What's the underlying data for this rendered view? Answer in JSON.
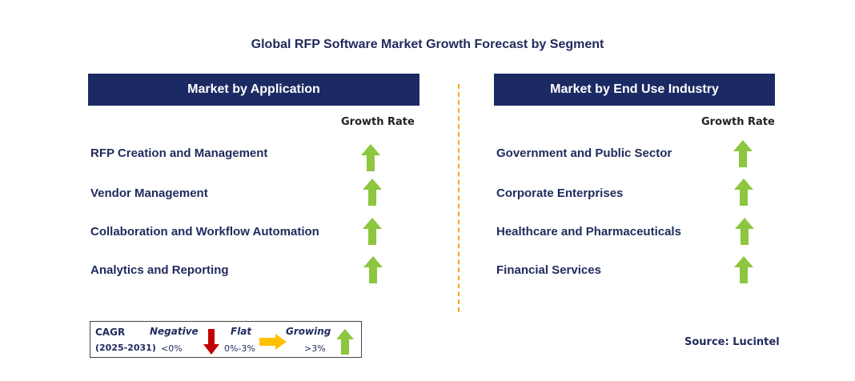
{
  "title": "Global RFP Software Market Growth Forecast by Segment",
  "colors": {
    "header_bg": "#1b2a63",
    "growing_arrow": "#8dc63f",
    "negative_arrow": "#c00000",
    "flat_arrow": "#ffc000",
    "divider": "#f5a623"
  },
  "left_panel": {
    "header": "Market by Application",
    "growth_label": "Growth Rate",
    "rows": [
      {
        "label": "RFP Creation and Management",
        "trend": "growing"
      },
      {
        "label": "Vendor Management",
        "trend": "growing"
      },
      {
        "label": "Collaboration and Workflow Automation",
        "trend": "growing"
      },
      {
        "label": "Analytics and Reporting",
        "trend": "growing"
      }
    ]
  },
  "right_panel": {
    "header": "Market by End Use Industry",
    "growth_label": "Growth Rate",
    "rows": [
      {
        "label": "Government and Public Sector",
        "trend": "growing"
      },
      {
        "label": "Corporate Enterprises",
        "trend": "growing"
      },
      {
        "label": "Healthcare and Pharmaceuticals",
        "trend": "growing"
      },
      {
        "label": "Financial Services",
        "trend": "growing"
      }
    ]
  },
  "legend": {
    "cagr": "CAGR",
    "period": "(2025-2031)",
    "negative_label": "Negative",
    "negative_range": "<0%",
    "flat_label": "Flat",
    "flat_range": "0%-3%",
    "growing_label": "Growing",
    "growing_range": ">3%"
  },
  "source": "Source: Lucintel"
}
